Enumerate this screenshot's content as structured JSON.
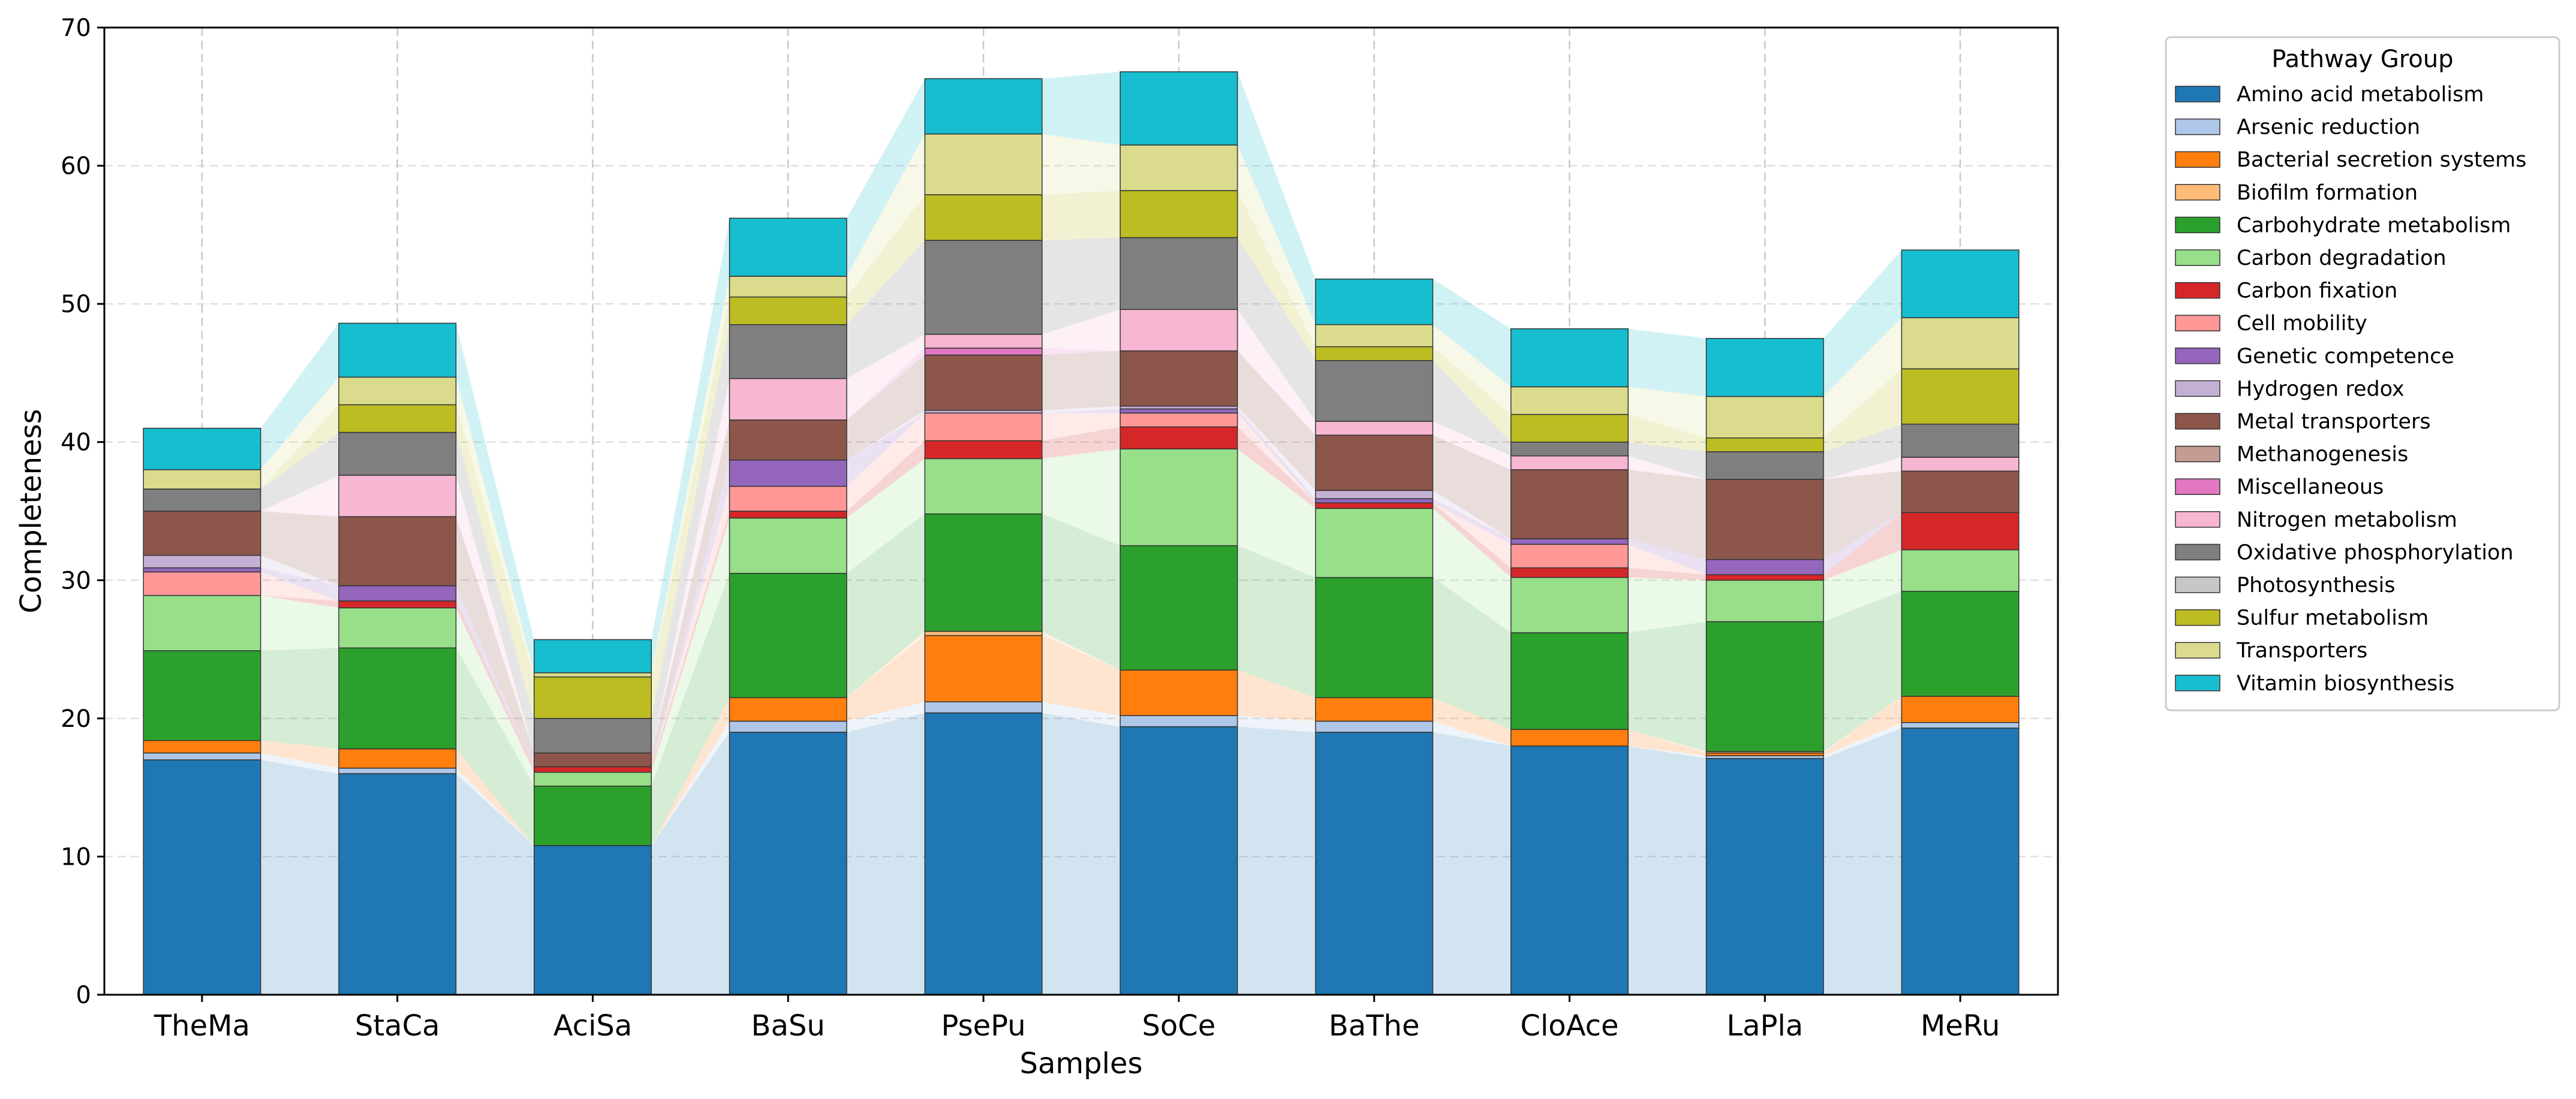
{
  "chart_data": {
    "type": "bar",
    "stacked": true,
    "connector_bands": true,
    "title": "",
    "xlabel": "Samples",
    "ylabel": "Completeness",
    "ylim": [
      0,
      70
    ],
    "yticks": [
      0,
      10,
      20,
      30,
      40,
      50,
      60,
      70
    ],
    "grid": true,
    "legend_title": "Pathway Group",
    "legend_position": "outside-right",
    "categories": [
      "TheMa",
      "StaCa",
      "AciSa",
      "BaSu",
      "PsePu",
      "SoCe",
      "BaThe",
      "CloAce",
      "LaPla",
      "MeRu"
    ],
    "series": [
      {
        "name": "Amino acid metabolism",
        "color": "#1f77b4",
        "values": [
          17.0,
          16.0,
          10.8,
          19.0,
          20.4,
          19.4,
          19.0,
          18.0,
          17.1,
          19.3
        ]
      },
      {
        "name": "Arsenic reduction",
        "color": "#aec7e8",
        "values": [
          0.5,
          0.4,
          0.0,
          0.8,
          0.8,
          0.8,
          0.8,
          0.0,
          0.2,
          0.4
        ]
      },
      {
        "name": "Bacterial secretion systems",
        "color": "#ff7f0e",
        "values": [
          0.9,
          1.4,
          0.0,
          1.7,
          4.8,
          3.3,
          1.7,
          1.2,
          0.2,
          1.9
        ]
      },
      {
        "name": "Biofilm formation",
        "color": "#ffbb78",
        "values": [
          0.0,
          0.0,
          0.0,
          0.0,
          0.3,
          0.0,
          0.0,
          0.0,
          0.1,
          0.0
        ]
      },
      {
        "name": "Carbohydrate metabolism",
        "color": "#2ca02c",
        "values": [
          6.5,
          7.3,
          4.3,
          9.0,
          8.5,
          9.0,
          8.7,
          7.0,
          9.4,
          7.6
        ]
      },
      {
        "name": "Carbon degradation",
        "color": "#98df8a",
        "values": [
          4.0,
          2.9,
          1.0,
          4.0,
          4.0,
          7.0,
          5.0,
          4.0,
          3.0,
          3.0
        ]
      },
      {
        "name": "Carbon fixation",
        "color": "#d62728",
        "values": [
          0.0,
          0.5,
          0.4,
          0.5,
          1.3,
          1.6,
          0.4,
          0.7,
          0.4,
          2.7
        ]
      },
      {
        "name": "Cell mobility",
        "color": "#ff9896",
        "values": [
          1.7,
          0.0,
          0.0,
          1.8,
          2.0,
          1.0,
          0.0,
          1.7,
          0.0,
          0.0
        ]
      },
      {
        "name": "Genetic competence",
        "color": "#9467bd",
        "values": [
          0.3,
          1.1,
          0.0,
          1.9,
          0.0,
          0.3,
          0.3,
          0.4,
          1.1,
          0.0
        ]
      },
      {
        "name": "Hydrogen redox",
        "color": "#c5b0d5",
        "values": [
          0.9,
          0.0,
          0.0,
          0.0,
          0.2,
          0.2,
          0.6,
          0.0,
          0.0,
          0.0
        ]
      },
      {
        "name": "Metal transporters",
        "color": "#8c564b",
        "values": [
          3.2,
          5.0,
          1.0,
          2.9,
          4.0,
          4.0,
          4.0,
          5.0,
          5.8,
          3.0
        ]
      },
      {
        "name": "Methanogenesis",
        "color": "#c49c94",
        "values": [
          0.0,
          0.0,
          0.0,
          0.0,
          0.0,
          0.0,
          0.0,
          0.0,
          0.0,
          0.0
        ]
      },
      {
        "name": "Miscellaneous",
        "color": "#e377c2",
        "values": [
          0.0,
          0.0,
          0.0,
          0.0,
          0.5,
          0.0,
          0.0,
          0.0,
          0.0,
          0.0
        ]
      },
      {
        "name": "Nitrogen metabolism",
        "color": "#f7b6d2",
        "values": [
          0.0,
          3.0,
          0.0,
          3.0,
          1.0,
          3.0,
          1.0,
          1.0,
          0.0,
          1.0
        ]
      },
      {
        "name": "Oxidative phosphorylation",
        "color": "#7f7f7f",
        "values": [
          1.6,
          3.1,
          2.5,
          3.9,
          6.8,
          5.2,
          4.4,
          1.0,
          2.0,
          2.4
        ]
      },
      {
        "name": "Photosynthesis",
        "color": "#c7c7c7",
        "values": [
          0.0,
          0.0,
          0.0,
          0.0,
          0.0,
          0.0,
          0.0,
          0.0,
          0.0,
          0.0
        ]
      },
      {
        "name": "Sulfur metabolism",
        "color": "#bcbd22",
        "values": [
          0.0,
          2.0,
          3.0,
          2.0,
          3.3,
          3.4,
          1.0,
          2.0,
          1.0,
          4.0
        ]
      },
      {
        "name": "Transporters",
        "color": "#dbdb8d",
        "values": [
          1.4,
          2.0,
          0.3,
          1.5,
          4.4,
          3.3,
          1.6,
          2.0,
          3.0,
          3.7
        ]
      },
      {
        "name": "Vitamin biosynthesis",
        "color": "#17becf",
        "values": [
          3.0,
          3.9,
          2.4,
          4.2,
          4.0,
          5.3,
          3.3,
          4.2,
          4.2,
          4.9
        ]
      }
    ]
  }
}
